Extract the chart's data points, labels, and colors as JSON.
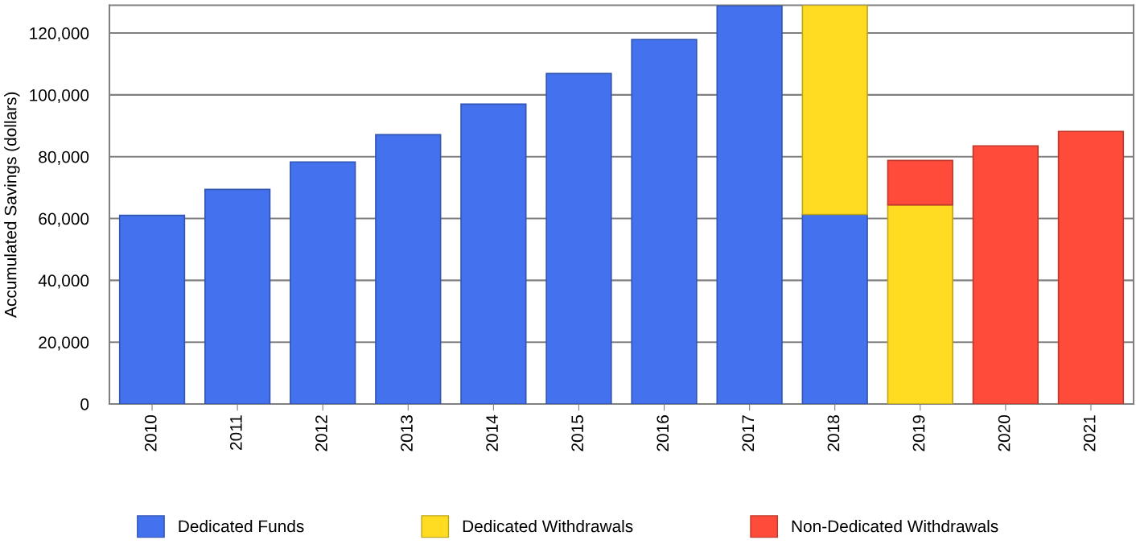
{
  "chart_data": {
    "type": "bar",
    "stacked": true,
    "ylabel": "Accumulated Savings (dollars)",
    "categories": [
      "2010",
      "2011",
      "2012",
      "2013",
      "2014",
      "2015",
      "2016",
      "2017",
      "2018",
      "2019",
      "2020",
      "2021"
    ],
    "series": [
      {
        "name": "Dedicated Funds",
        "color": "#4472ee",
        "values": [
          61000,
          69400,
          78300,
          87100,
          97000,
          106900,
          117900,
          128800,
          61300,
          null,
          null,
          null
        ]
      },
      {
        "name": "Dedicated Withdrawals",
        "color": "#ffdc22",
        "values": [
          null,
          null,
          null,
          null,
          null,
          null,
          null,
          null,
          67700,
          64400,
          null,
          null
        ]
      },
      {
        "name": "Non-Dedicated Withdrawals",
        "color": "#ff4b3a",
        "values": [
          null,
          null,
          null,
          null,
          null,
          null,
          null,
          null,
          null,
          14400,
          83500,
          88200
        ]
      }
    ],
    "ylim": [
      0,
      129000
    ],
    "yticks": [
      {
        "value": 0,
        "label": "0"
      },
      {
        "value": 20000,
        "label": "20,000"
      },
      {
        "value": 40000,
        "label": "40,000"
      },
      {
        "value": 60000,
        "label": "60,000"
      },
      {
        "value": 80000,
        "label": "80,000"
      },
      {
        "value": 100000,
        "label": "100,000"
      },
      {
        "value": 120000,
        "label": "120,000"
      }
    ],
    "grid": "y",
    "legend": "bottom"
  }
}
